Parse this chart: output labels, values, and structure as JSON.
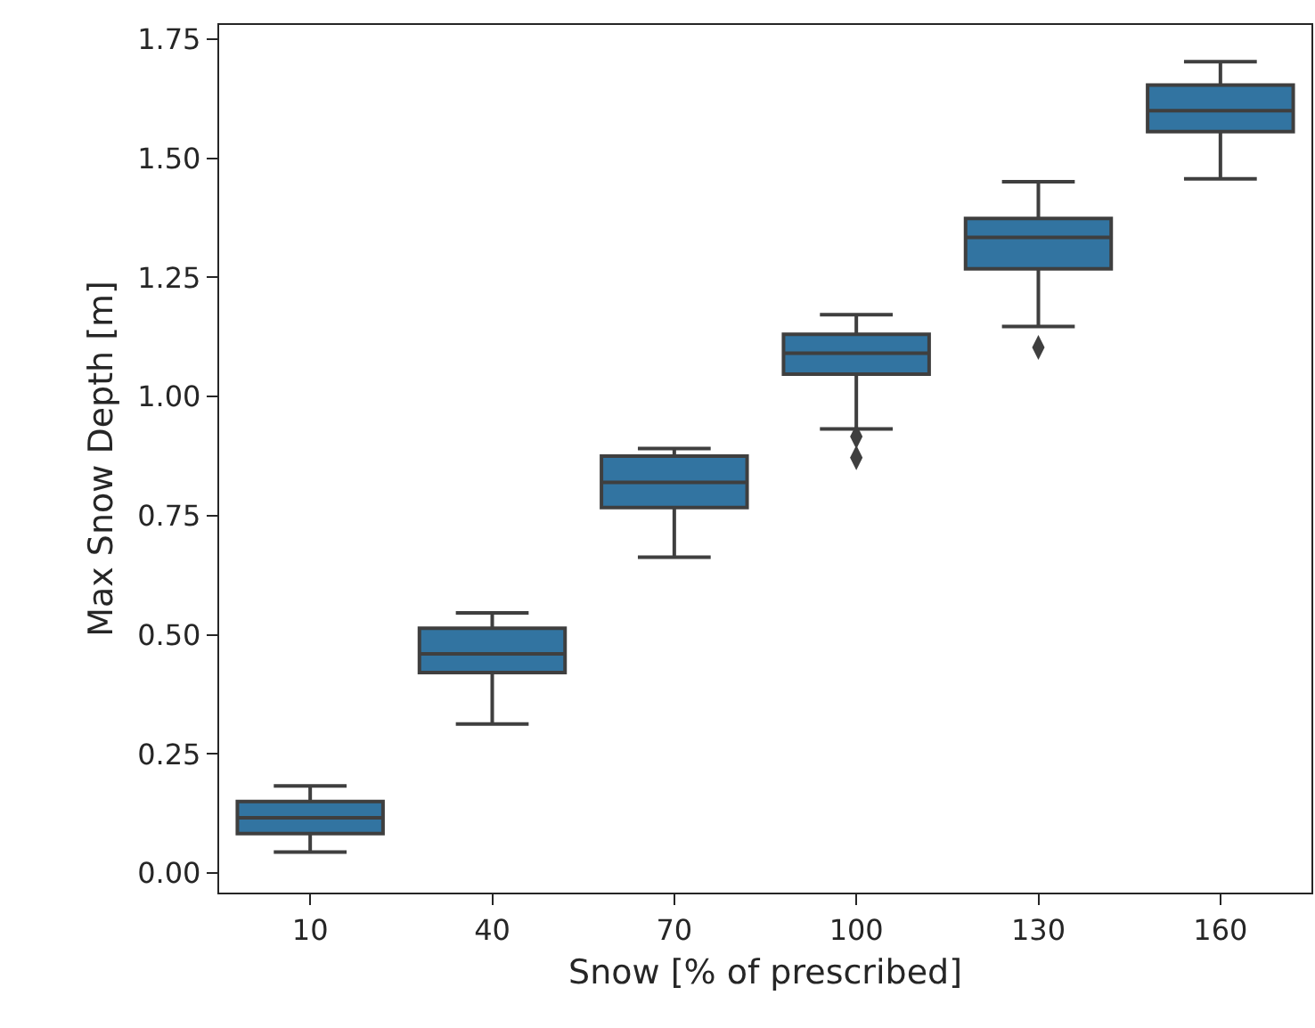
{
  "chart_data": {
    "type": "box",
    "xlabel": "Snow [% of prescribed]",
    "ylabel": "Max Snow Depth [m]",
    "categories": [
      "10",
      "40",
      "70",
      "100",
      "130",
      "160"
    ],
    "series": [
      {
        "color": "#3274a1",
        "boxes": [
          {
            "low": 0.044,
            "q1": 0.083,
            "median": 0.116,
            "q3": 0.15,
            "high": 0.183
          },
          {
            "low": 0.313,
            "q1": 0.421,
            "median": 0.46,
            "q3": 0.514,
            "high": 0.546
          },
          {
            "low": 0.663,
            "q1": 0.767,
            "median": 0.82,
            "q3": 0.875,
            "high": 0.891
          },
          {
            "low": 0.932,
            "q1": 1.047,
            "median": 1.091,
            "q3": 1.131,
            "high": 1.172,
            "outliers": [
              0.916,
              0.872
            ]
          },
          {
            "low": 1.147,
            "q1": 1.268,
            "median": 1.334,
            "q3": 1.374,
            "high": 1.451,
            "outliers": [
              1.103
            ]
          },
          {
            "low": 1.457,
            "q1": 1.556,
            "median": 1.6,
            "q3": 1.654,
            "high": 1.703
          }
        ]
      }
    ],
    "marker": "diamond",
    "ylim": [
      -0.041,
      1.78
    ],
    "yticks": [
      {
        "value": 0,
        "label": "0.00"
      },
      {
        "value": 0.25,
        "label": "0.25"
      },
      {
        "value": 0.5,
        "label": "0.50"
      },
      {
        "value": 0.75,
        "label": "0.75"
      },
      {
        "value": 1,
        "label": "1.00"
      },
      {
        "value": 1.25,
        "label": "1.25"
      },
      {
        "value": 1.5,
        "label": "1.50"
      },
      {
        "value": 1.75,
        "label": "1.75"
      }
    ]
  }
}
